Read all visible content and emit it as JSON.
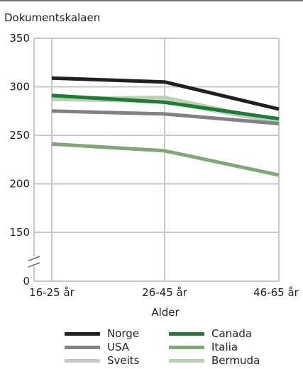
{
  "chart_data": {
    "type": "line",
    "title": "Dokumentskalaen",
    "xlabel": "Alder",
    "ylabel": "",
    "categories": [
      "16-25 år",
      "26-45 år",
      "46-65 år"
    ],
    "ylim": [
      0,
      350
    ],
    "yticks": [
      "0",
      "150",
      "200",
      "250",
      "300",
      "350"
    ],
    "axis_break": true,
    "grid": true,
    "legend_position": "bottom",
    "series": [
      {
        "name": "Norge",
        "values": [
          309,
          305,
          277
        ],
        "color": "#231f20"
      },
      {
        "name": "Canada",
        "values": [
          291,
          284,
          267
        ],
        "color": "#1e7b35"
      },
      {
        "name": "USA",
        "values": [
          275,
          272,
          262
        ],
        "color": "#808285"
      },
      {
        "name": "Italia",
        "values": [
          241,
          234,
          209
        ],
        "color": "#7fa876"
      },
      {
        "name": "Sveits",
        "values": [
          287,
          285,
          263
        ],
        "color": "#c7c8ca"
      },
      {
        "name": "Bermuda",
        "values": [
          288,
          289,
          264
        ],
        "color": "#b7d3b0"
      }
    ]
  }
}
